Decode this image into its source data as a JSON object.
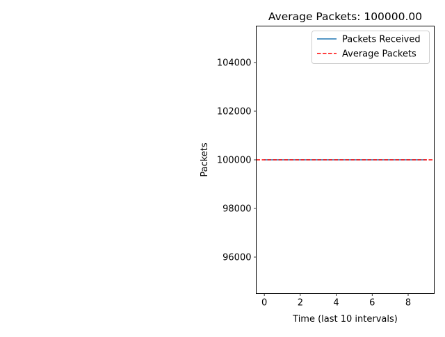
{
  "chart_data": {
    "type": "line",
    "title": "Average Packets: 100000.00",
    "xlabel": "Time (last 10 intervals)",
    "ylabel": "Packets",
    "xlim": [
      -0.45,
      9.45
    ],
    "ylim": [
      94500,
      105500
    ],
    "xticks": [
      0,
      2,
      4,
      6,
      8
    ],
    "yticks": [
      96000,
      98000,
      100000,
      102000,
      104000
    ],
    "grid": false,
    "legend_position": "top-right",
    "series": [
      {
        "name": "Packets Received",
        "style": "solid",
        "color": "#1f77b4",
        "x": [
          0,
          1,
          2,
          3,
          4,
          5,
          6,
          7,
          8,
          9
        ],
        "y": [
          100000,
          100000,
          100000,
          100000,
          100000,
          100000,
          100000,
          100000,
          100000,
          100000
        ]
      }
    ],
    "hlines": [
      {
        "name": "Average Packets",
        "style": "dashed",
        "color": "#ff0000",
        "y": 100000
      }
    ]
  }
}
